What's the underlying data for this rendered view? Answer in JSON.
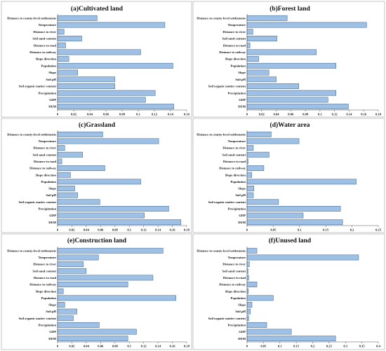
{
  "chart_data": [
    {
      "type": "bar",
      "orientation": "horizontal",
      "title": "(a)Cultivated land",
      "categories": [
        "Distance to county-level settlements",
        "Temperature",
        "Distance to river",
        "Soil sand content",
        "Distance to road",
        "Distance to railway",
        "Slope direction",
        "Population",
        "Slope",
        "Soil pH",
        "Soil organic matter content",
        "Precipitation",
        "GDP",
        "DEM"
      ],
      "values": [
        0.049,
        0.133,
        0.008,
        0.03,
        0.01,
        0.103,
        0.014,
        0.143,
        0.025,
        0.071,
        0.071,
        0.121,
        0.109,
        0.144
      ],
      "xticks": [
        "0",
        "0.02",
        "0.04",
        "0.06",
        "0.08",
        "0.1",
        "0.12",
        "0.14",
        "0.16"
      ],
      "xlim": [
        0,
        0.16
      ]
    },
    {
      "type": "bar",
      "orientation": "horizontal",
      "title": "(b)Forest land",
      "categories": [
        "Distance to county-level settlements",
        "Temperature",
        "Distance to river",
        "Soil sand content",
        "Distance to road",
        "Distance to railway",
        "Slope direction",
        "Population",
        "Slope",
        "Soil pH",
        "Soil organic matter content",
        "Precipitation",
        "GDP",
        "DEM"
      ],
      "values": [
        0.055,
        0.164,
        0.008,
        0.041,
        0.004,
        0.095,
        0.016,
        0.122,
        0.03,
        0.04,
        0.071,
        0.122,
        0.111,
        0.139
      ],
      "xticks": [
        "0",
        "0.02",
        "0.04",
        "0.06",
        "0.08",
        "0.1",
        "0.12",
        "0.14",
        "0.16",
        "0.18"
      ],
      "xlim": [
        0,
        0.18
      ]
    },
    {
      "type": "bar",
      "orientation": "horizontal",
      "title": "(c)Grassland",
      "categories": [
        "Distance to county-level settlements",
        "Temperature",
        "Distance to river",
        "Soil sand content",
        "Distance to road",
        "Distance to railway",
        "Slope direction",
        "Population",
        "Slope",
        "Soil pH",
        "Soil organic matter content",
        "Precipitation",
        "GDP",
        "DEM"
      ],
      "values": [
        0.063,
        0.141,
        0.01,
        0.035,
        0.006,
        0.066,
        0.018,
        0.116,
        0.024,
        0.028,
        0.059,
        0.155,
        0.121,
        0.172
      ],
      "xticks": [
        "0",
        "0.02",
        "0.04",
        "0.06",
        "0.08",
        "0.1",
        "0.12",
        "0.14",
        "0.16",
        "0.18"
      ],
      "xlim": [
        0,
        0.18
      ]
    },
    {
      "type": "bar",
      "orientation": "horizontal",
      "title": "(d)Water area",
      "categories": [
        "Distance to county-level settlements",
        "Temperature",
        "Distance to river",
        "Soil sand content",
        "Distance to road",
        "Distance to railway",
        "Slope direction",
        "Population",
        "Slope",
        "Soil pH",
        "Soil organic matter content",
        "Precipitation",
        "GDP",
        "DEM"
      ],
      "values": [
        0.046,
        0.099,
        0.012,
        0.042,
        0.002,
        0.032,
        0.009,
        0.208,
        0.013,
        0.012,
        0.06,
        0.178,
        0.107,
        0.182
      ],
      "xticks": [
        "0",
        "0.05",
        "0.1",
        "0.15",
        "0.2",
        "0.25"
      ],
      "xlim": [
        0,
        0.25
      ]
    },
    {
      "type": "bar",
      "orientation": "horizontal",
      "title": "(e)Construction land",
      "categories": [
        "Distance to county-level settlements",
        "Temperature",
        "Distance to river",
        "Soil sand content",
        "Distance to road",
        "Distance to railway",
        "Slope direction",
        "Population",
        "Slope",
        "Soil pH",
        "Soil organic matter content",
        "Precipitation",
        "GDP",
        "DEM"
      ],
      "values": [
        0.147,
        0.057,
        0.036,
        0.04,
        0.133,
        0.098,
        0.008,
        0.165,
        0.01,
        0.027,
        0.022,
        0.058,
        0.11,
        0.098
      ],
      "xticks": [
        "0",
        "0.02",
        "0.04",
        "0.06",
        "0.08",
        "0.1",
        "0.12",
        "0.14",
        "0.16",
        "0.18"
      ],
      "xlim": [
        0,
        0.18
      ]
    },
    {
      "type": "bar",
      "orientation": "horizontal",
      "title": "(f)Unused land",
      "categories": [
        "Distance to county-level settlements",
        "Temperature",
        "Distance to river",
        "Soil sand content",
        "Distance to road",
        "Distance to railway",
        "Slope direction",
        "Population",
        "Slope",
        "Soil pH",
        "Soil organic matter content",
        "Precipitation",
        "GDP",
        "DEM"
      ],
      "values": [
        0.03,
        0.34,
        0.007,
        0.003,
        0.005,
        0.03,
        0.004,
        0.08,
        0.015,
        0.01,
        0.005,
        0.06,
        0.135,
        0.27
      ],
      "xticks": [
        "0",
        "0.05",
        "0.1",
        "0.15",
        "0.2",
        "0.25",
        "0.3",
        "0.35",
        "0.4"
      ],
      "xlim": [
        0,
        0.4
      ]
    }
  ]
}
